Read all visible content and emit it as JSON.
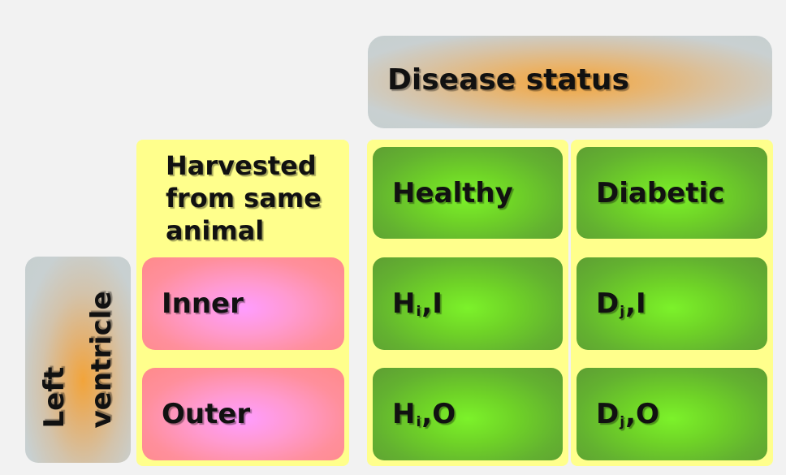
{
  "diagram": {
    "header": {
      "title": "Disease status"
    },
    "sidebar": {
      "title_line1": "Left",
      "title_line2": "ventricle"
    },
    "harvest_note": {
      "line1": "Harvested",
      "line2": "from same",
      "line3": "animal"
    },
    "columns": {
      "healthy": "Healthy",
      "diabetic": "Diabetic"
    },
    "rows": {
      "inner": "Inner",
      "outer": "Outer"
    },
    "cells": {
      "healthy_inner": {
        "letter": "H",
        "sub": "i",
        "suffix": ",I"
      },
      "diabetic_inner": {
        "letter": "D",
        "sub": "j",
        "suffix": ",I"
      },
      "healthy_outer": {
        "letter": "H",
        "sub": "i",
        "suffix": ",O"
      },
      "diabetic_outer": {
        "letter": "D",
        "sub": "j",
        "suffix": ",O"
      }
    },
    "colors": {
      "background": "#f2f2f2",
      "yellow": "#ffff8c",
      "green": "#63b230",
      "pink": "#ff8f9c",
      "orange": "#f2a43a",
      "grey": "#c6cfd0"
    }
  }
}
